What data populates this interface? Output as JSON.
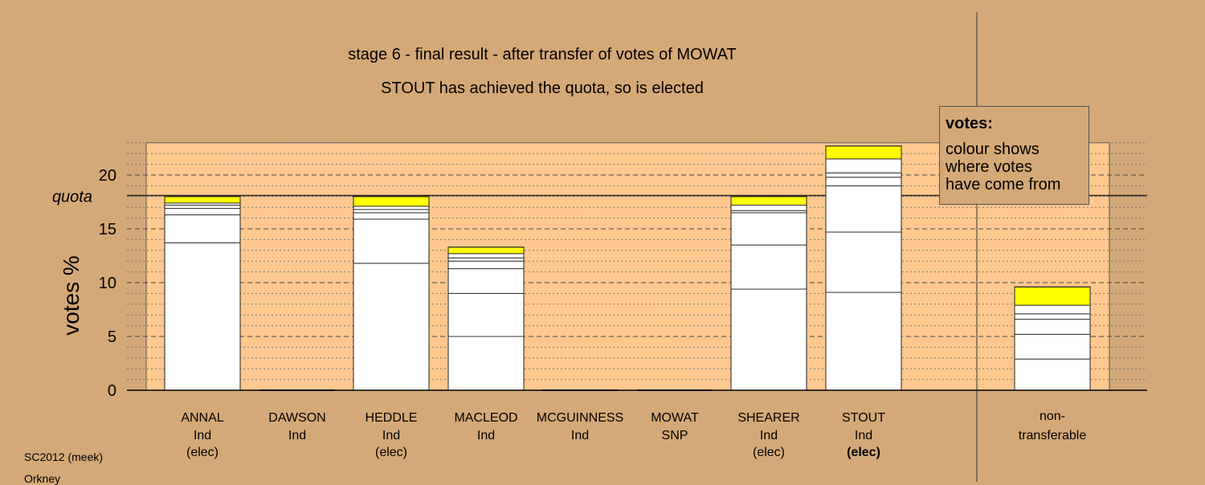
{
  "title_line1": "stage 6 - final result - after transfer of votes of MOWAT",
  "title_line2": "STOUT has achieved the quota, so is elected",
  "legend": {
    "title": "votes:",
    "line1": "colour shows",
    "line2": "where votes",
    "line3": "have come from"
  },
  "footer": {
    "line1": "SC2012 (meek)",
    "line2": "Orkney"
  },
  "colors": {
    "background": "#d4a977",
    "plot": "#fec88e",
    "bar": "#ffffff",
    "transfer": "#ffff00"
  },
  "chart_data": {
    "type": "bar",
    "stacked": true,
    "title": "stage 6 - final result - after transfer of votes of MOWAT",
    "subtitle": "STOUT has achieved the quota, so is elected",
    "ylabel": "votes %",
    "ylim": [
      0,
      23
    ],
    "yticks": [
      0,
      5,
      10,
      15,
      20
    ],
    "quota": 18.1,
    "quota_label": "quota",
    "categories": [
      {
        "name": "ANNAL",
        "party": "Ind",
        "status": "(elec)",
        "bold": false,
        "segments": [
          13.7,
          2.6,
          0.6,
          0.3,
          0.2,
          0.6
        ],
        "total": 18.0
      },
      {
        "name": "DAWSON",
        "party": "Ind",
        "status": "",
        "bold": false,
        "segments": [],
        "total": 0
      },
      {
        "name": "HEDDLE",
        "party": "Ind",
        "status": "(elec)",
        "bold": false,
        "segments": [
          11.8,
          4.1,
          0.6,
          0.3,
          0.3,
          0.9
        ],
        "total": 18.0
      },
      {
        "name": "MACLEOD",
        "party": "Ind",
        "status": "",
        "bold": false,
        "segments": [
          5.0,
          4.0,
          2.3,
          0.7,
          0.3,
          0.4,
          0.6
        ],
        "total": 13.3
      },
      {
        "name": "MCGUINNESS",
        "party": "Ind",
        "status": "",
        "bold": false,
        "segments": [],
        "total": 0
      },
      {
        "name": "MOWAT",
        "party": "SNP",
        "status": "",
        "bold": false,
        "segments": [],
        "total": 0
      },
      {
        "name": "SHEARER",
        "party": "Ind",
        "status": "(elec)",
        "bold": false,
        "segments": [
          9.4,
          4.1,
          3.0,
          0.2,
          0.5,
          0.8
        ],
        "total": 18.0
      },
      {
        "name": "STOUT",
        "party": "Ind",
        "status": "(elec)",
        "bold": true,
        "segments": [
          9.1,
          5.6,
          4.3,
          0.8,
          0.4,
          1.3,
          1.2
        ],
        "total": 22.7
      }
    ],
    "nontransferable": {
      "label1": "non-",
      "label2": "transferable",
      "segments": [
        2.9,
        2.3,
        1.4,
        0.5,
        0.8,
        1.7
      ],
      "total": 9.6
    }
  }
}
